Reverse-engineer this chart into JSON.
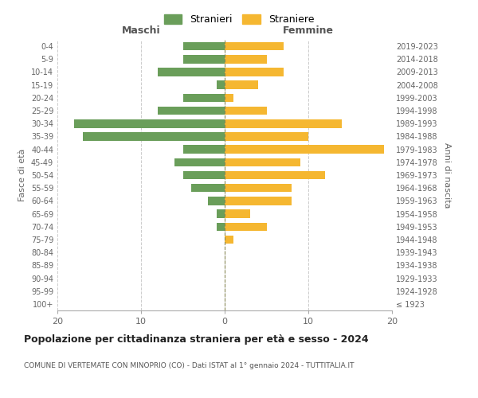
{
  "age_groups": [
    "100+",
    "95-99",
    "90-94",
    "85-89",
    "80-84",
    "75-79",
    "70-74",
    "65-69",
    "60-64",
    "55-59",
    "50-54",
    "45-49",
    "40-44",
    "35-39",
    "30-34",
    "25-29",
    "20-24",
    "15-19",
    "10-14",
    "5-9",
    "0-4"
  ],
  "birth_years": [
    "≤ 1923",
    "1924-1928",
    "1929-1933",
    "1934-1938",
    "1939-1943",
    "1944-1948",
    "1949-1953",
    "1954-1958",
    "1959-1963",
    "1964-1968",
    "1969-1973",
    "1974-1978",
    "1979-1983",
    "1984-1988",
    "1989-1993",
    "1994-1998",
    "1999-2003",
    "2004-2008",
    "2009-2013",
    "2014-2018",
    "2019-2023"
  ],
  "stranieri": [
    0,
    0,
    0,
    0,
    0,
    0,
    1,
    1,
    2,
    4,
    5,
    6,
    5,
    17,
    18,
    8,
    5,
    1,
    8,
    5,
    5
  ],
  "straniere": [
    0,
    0,
    0,
    0,
    0,
    1,
    5,
    3,
    8,
    8,
    12,
    9,
    19,
    10,
    14,
    5,
    1,
    4,
    7,
    5,
    7
  ],
  "color_stranieri": "#6a9e5a",
  "color_straniere": "#f5b731",
  "title": "Popolazione per cittadinanza straniera per età e sesso - 2024",
  "subtitle": "COMUNE DI VERTEMATE CON MINOPRIO (CO) - Dati ISTAT al 1° gennaio 2024 - TUTTITALIA.IT",
  "xlabel_left": "Maschi",
  "xlabel_right": "Femmine",
  "ylabel_left": "Fasce di età",
  "ylabel_right": "Anni di nascita",
  "xmin": -20,
  "xmax": 20,
  "legend_stranieri": "Stranieri",
  "legend_straniere": "Straniere",
  "background_color": "#ffffff",
  "grid_color": "#cccccc"
}
